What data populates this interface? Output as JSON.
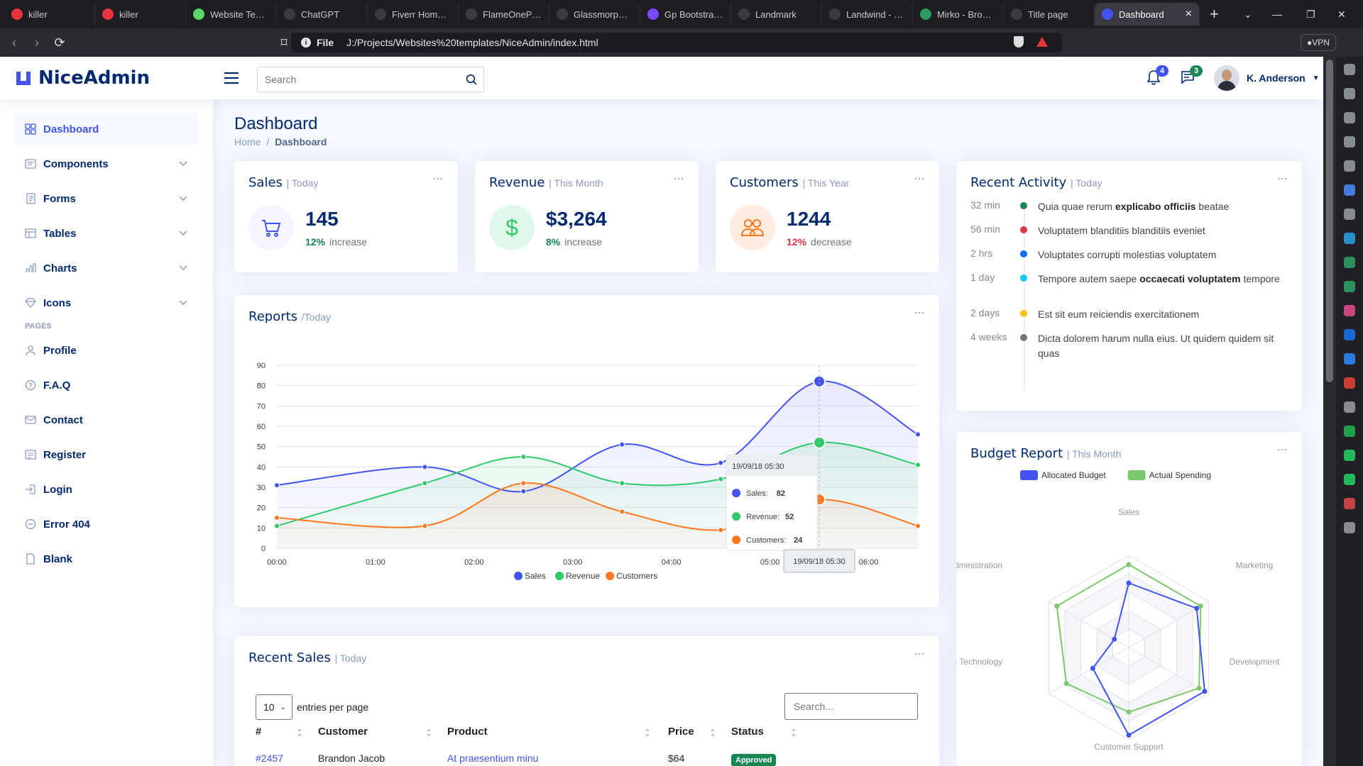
{
  "browser": {
    "tabs": [
      {
        "label": "killer",
        "favicon_color": "#e8343c"
      },
      {
        "label": "killer",
        "favicon_color": "#e8343c"
      },
      {
        "label": "Website Templ",
        "favicon_color": "#5ed86b"
      },
      {
        "label": "ChatGPT",
        "favicon_color": "#3a3a42"
      },
      {
        "label": "Fiverr Homepa",
        "favicon_color": "#3a3a42"
      },
      {
        "label": "FlameOnePage",
        "favicon_color": "#3a3a42"
      },
      {
        "label": "Glassmorphism",
        "favicon_color": "#3a3a42"
      },
      {
        "label": "Gp Bootstrap T",
        "favicon_color": "#7b4cff"
      },
      {
        "label": "Landmark",
        "favicon_color": "#3a3a42"
      },
      {
        "label": "Landwind - Tail",
        "favicon_color": "#3a3a42"
      },
      {
        "label": "Mirko - Broadb",
        "favicon_color": "#2b9a5c"
      },
      {
        "label": "Title page",
        "favicon_color": "#3a3a42"
      }
    ],
    "active_tab": {
      "label": "Dashboard",
      "favicon_color": "#4154f1"
    },
    "url_scheme": "File",
    "url": "J:/Projects/Websites%20templates/NiceAdmin/index.html",
    "vpn_label": "VPN"
  },
  "header": {
    "logo_text": "NiceAdmin",
    "search_placeholder": "Search",
    "notifications_count": "4",
    "messages_count": "3",
    "user_name": "K. Anderson"
  },
  "sidebar": {
    "items": [
      {
        "label": "Dashboard",
        "icon": "grid-icon",
        "active": true
      },
      {
        "label": "Components",
        "icon": "menu-button-icon",
        "chevron": true
      },
      {
        "label": "Forms",
        "icon": "journal-text-icon",
        "chevron": true
      },
      {
        "label": "Tables",
        "icon": "layout-text-icon",
        "chevron": true
      },
      {
        "label": "Charts",
        "icon": "bar-chart-icon",
        "chevron": true
      },
      {
        "label": "Icons",
        "icon": "gem-icon",
        "chevron": true
      }
    ],
    "pages_heading": "Pages",
    "pages": [
      {
        "label": "Profile",
        "icon": "person-icon"
      },
      {
        "label": "F.A.Q",
        "icon": "question-circle-icon"
      },
      {
        "label": "Contact",
        "icon": "envelope-icon"
      },
      {
        "label": "Register",
        "icon": "card-list-icon"
      },
      {
        "label": "Login",
        "icon": "box-arrow-in-right-icon"
      },
      {
        "label": "Error 404",
        "icon": "dash-circle-icon"
      },
      {
        "label": "Blank",
        "icon": "file-icon"
      }
    ]
  },
  "page": {
    "title": "Dashboard",
    "breadcrumb": [
      "Home",
      "/",
      "Dashboard"
    ]
  },
  "cards": {
    "sales": {
      "title": "Sales",
      "filter": "| Today",
      "value": "145",
      "pct": "12%",
      "trend": "increase",
      "pct_color": "#198754"
    },
    "revenue": {
      "title": "Revenue",
      "filter": "| This Month",
      "value": "$3,264",
      "pct": "8%",
      "trend": "increase",
      "pct_color": "#198754"
    },
    "customers": {
      "title": "Customers",
      "filter": "| This Year",
      "value": "1244",
      "pct": "12%",
      "trend": "decrease",
      "pct_color": "#dc3545"
    }
  },
  "activity": {
    "title": "Recent Activity",
    "filter": "| Today",
    "items": [
      {
        "time": "32 min",
        "color": "#198754",
        "pre": "Quia quae rerum ",
        "bold": "explicabo officiis",
        "post": " beatae"
      },
      {
        "time": "56 min",
        "color": "#dc3545",
        "pre": "Voluptatem blanditiis blanditiis eveniet",
        "bold": "",
        "post": ""
      },
      {
        "time": "2 hrs",
        "color": "#0d6efd",
        "pre": "Voluptates corrupti molestias voluptatem",
        "bold": "",
        "post": ""
      },
      {
        "time": "1 day",
        "color": "#0dcaf0",
        "pre": "Tempore autem saepe ",
        "bold": "occaecati voluptatem",
        "post": " tempore"
      },
      {
        "time": "2 days",
        "color": "#ffc107",
        "pre": "Est sit eum reiciendis exercitationem",
        "bold": "",
        "post": ""
      },
      {
        "time": "4 weeks",
        "color": "#6c757d",
        "pre": "Dicta dolorem harum nulla eius. Ut quidem quidem sit quas",
        "bold": "",
        "post": ""
      }
    ]
  },
  "reports": {
    "title": "Reports",
    "filter": "/Today"
  },
  "chart_data": [
    {
      "type": "area",
      "x": [
        "00:00",
        "01:00",
        "02:00",
        "03:00",
        "04:00",
        "05:00",
        "06:00"
      ],
      "x_hours": [
        0,
        1.5,
        2.5,
        3.5,
        4.5,
        5.5,
        6.5
      ],
      "ylim": [
        0,
        90
      ],
      "yticks": [
        0,
        10,
        20,
        30,
        40,
        50,
        60,
        70,
        80,
        90
      ],
      "series": [
        {
          "name": "Sales",
          "color": "#4154f1",
          "x": [
            0,
            1.5,
            2.5,
            3.5,
            4.5,
            5.5,
            6.5
          ],
          "values": [
            31,
            40,
            28,
            51,
            42,
            82,
            56
          ]
        },
        {
          "name": "Revenue",
          "color": "#2eca6a",
          "x": [
            0,
            1.5,
            2.5,
            3.5,
            4.5,
            5.5,
            6.5
          ],
          "values": [
            11,
            32,
            45,
            32,
            34,
            52,
            41
          ]
        },
        {
          "name": "Customers",
          "color": "#ff771d",
          "x": [
            0,
            1.5,
            2.5,
            3.5,
            4.5,
            5.5,
            6.5
          ],
          "values": [
            15,
            11,
            32,
            18,
            9,
            24,
            11
          ]
        }
      ],
      "tooltip": {
        "date": "19/09/18 05:30",
        "rows": [
          {
            "label": "Sales:",
            "value": "82"
          },
          {
            "label": "Revenue:",
            "value": "52"
          },
          {
            "label": "Customers:",
            "value": "24"
          }
        ]
      },
      "legend": "bottom",
      "grid": true
    },
    {
      "type": "radar",
      "title": "Budget Report",
      "filter": "| This Month",
      "indicators": [
        "Sales",
        "Marketing",
        "Development",
        "Customer Support",
        "Information Technology",
        "Administration"
      ],
      "indicator_labels": [
        "Sales",
        "Marketing",
        "Development",
        "Customer Support",
        "on Technology",
        "dministration"
      ],
      "max": 100,
      "series": [
        {
          "name": "Allocated Budget",
          "color": "#4154f1",
          "values": [
            70,
            85,
            95,
            95,
            45,
            18
          ]
        },
        {
          "name": "Actual Spending",
          "color": "#7cc96b",
          "values": [
            90,
            90,
            88,
            70,
            78,
            90
          ]
        }
      ],
      "legend": "top"
    }
  ],
  "recent_sales": {
    "title": "Recent Sales",
    "filter": "| Today",
    "per_page": "10",
    "per_page_label": "entries per page",
    "search_placeholder": "Search...",
    "columns": [
      "#",
      "Customer",
      "Product",
      "Price",
      "Status"
    ],
    "rows": [
      {
        "id": "#2457",
        "customer": "Brandon Jacob",
        "product": "At praesentium minu",
        "price": "$64",
        "status": "Approved"
      }
    ]
  }
}
